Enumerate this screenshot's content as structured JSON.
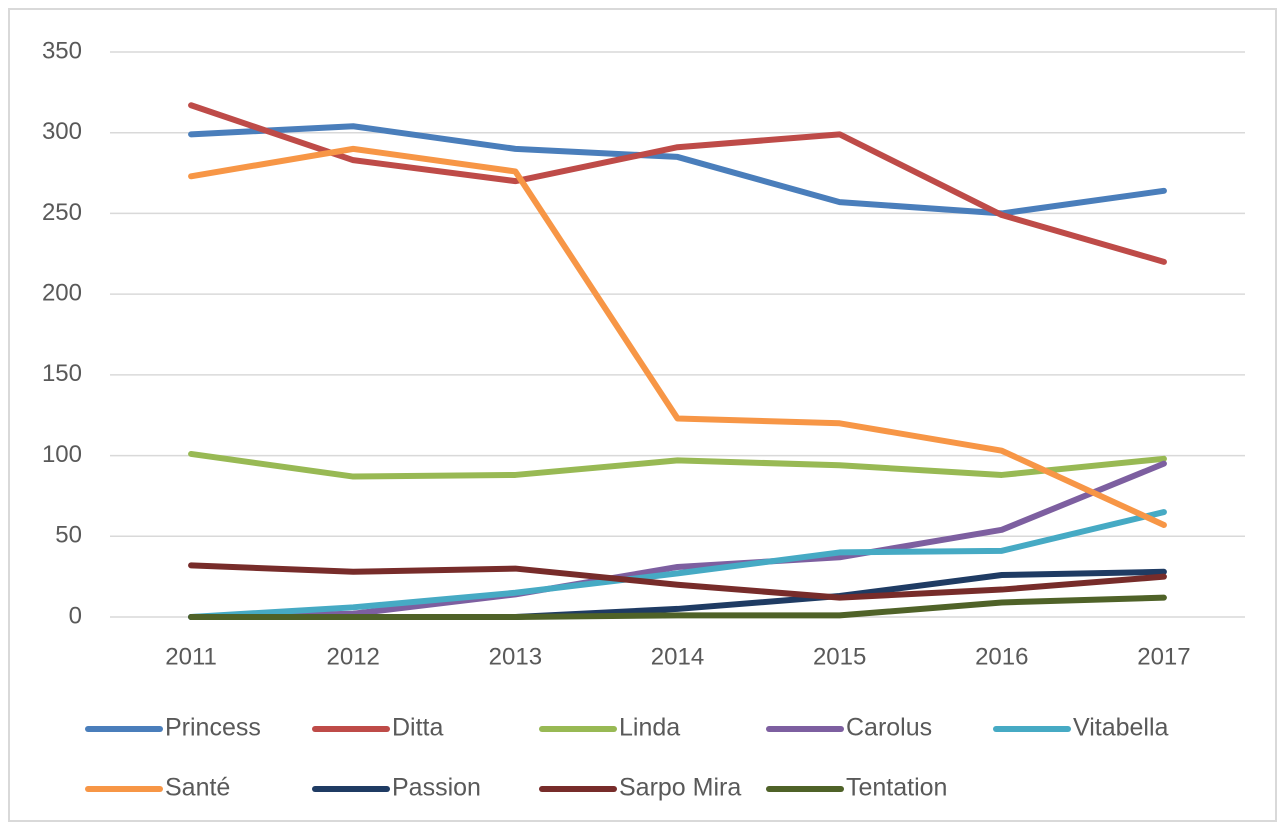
{
  "chart_data": {
    "type": "line",
    "categories": [
      "2011",
      "2012",
      "2013",
      "2014",
      "2015",
      "2016",
      "2017"
    ],
    "series": [
      {
        "name": "Princess",
        "color": "#4a7ebb",
        "values": [
          299,
          304,
          290,
          285,
          257,
          250,
          264
        ]
      },
      {
        "name": "Ditta",
        "color": "#be4b48",
        "values": [
          317,
          283,
          270,
          291,
          299,
          249,
          220
        ]
      },
      {
        "name": "Linda",
        "color": "#98b954",
        "values": [
          101,
          87,
          88,
          97,
          94,
          88,
          98
        ]
      },
      {
        "name": "Carolus",
        "color": "#7d5fa0",
        "values": [
          0,
          2,
          14,
          31,
          37,
          54,
          95
        ]
      },
      {
        "name": "Vitabella",
        "color": "#46aac4",
        "values": [
          0,
          6,
          15,
          27,
          40,
          41,
          65
        ]
      },
      {
        "name": "Santé",
        "color": "#f79646",
        "values": [
          273,
          290,
          276,
          123,
          120,
          103,
          57
        ]
      },
      {
        "name": "Passion",
        "color": "#1f3b63",
        "values": [
          0,
          0,
          0,
          5,
          13,
          26,
          28
        ]
      },
      {
        "name": "Sarpo Mira",
        "color": "#772c2a",
        "values": [
          32,
          28,
          30,
          20,
          12,
          17,
          25
        ]
      },
      {
        "name": "Tentation",
        "color": "#4f6228",
        "values": [
          0,
          0,
          0,
          1,
          1,
          9,
          12
        ]
      }
    ],
    "ylim": [
      0,
      350
    ],
    "yticks": [
      0,
      50,
      100,
      150,
      200,
      250,
      300,
      350
    ],
    "grid": true,
    "legend": "bottom"
  }
}
